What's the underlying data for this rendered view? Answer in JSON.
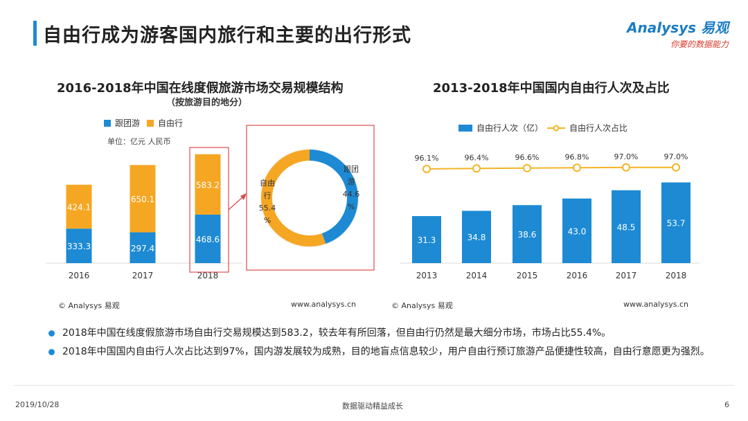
{
  "page": {
    "title": "自由行成为游客国内旅行和主要的出行形式",
    "brand": "Analysys 易观",
    "brand_slogan": "你要的数据能力",
    "accent": "#1d8ad3",
    "orange": "#f5a623"
  },
  "left_chart": {
    "title": "2016-2018年中国在线度假旅游市场交易规模结构",
    "subtitle": "（按旅游目的地分）",
    "unit": "单位：亿元 人民币",
    "source": "© Analysys 易观",
    "website": "www.analysys.cn"
  },
  "right_chart": {
    "title": "2013-2018年中国国内自由行人次及占比",
    "source": "© Analysys 易观",
    "website": "www.analysys.cn"
  },
  "chart_data": [
    {
      "type": "bar",
      "stacked": true,
      "title": "2016-2018年中国在线度假旅游市场交易规模结构",
      "categories": [
        "2016",
        "2017",
        "2018"
      ],
      "series": [
        {
          "name": "跟团游",
          "values": [
            333.3,
            297.4,
            468.6
          ],
          "labels": [
            "333.3",
            "297.4",
            "468.6"
          ],
          "color": "#1d8ad3"
        },
        {
          "name": "自由行",
          "values": [
            424.1,
            650.1,
            583.2
          ],
          "labels": [
            "424.1",
            "650.1",
            "583.2"
          ],
          "color": "#f5a623"
        }
      ],
      "ylabel": "单位：亿元 人民币",
      "ylim": [
        0,
        1100
      ]
    },
    {
      "type": "pie",
      "donut": true,
      "slices": [
        {
          "name": "跟团游",
          "value": 44.6,
          "label_lines": [
            "跟团",
            "游",
            "44.6",
            "%"
          ],
          "color": "#1d8ad3"
        },
        {
          "name": "自由行",
          "value": 55.4,
          "label_lines": [
            "自由",
            "行",
            "55.4",
            "%"
          ],
          "color": "#f5a623"
        }
      ]
    },
    {
      "type": "bar",
      "title": "2013-2018年中国国内自由行人次及占比",
      "categories": [
        "2013",
        "2014",
        "2015",
        "2016",
        "2017",
        "2018"
      ],
      "series": [
        {
          "name": "自由行人次（亿）",
          "values": [
            31.3,
            34.8,
            38.6,
            43.0,
            48.5,
            53.7
          ],
          "labels": [
            "31.3",
            "34.8",
            "38.6",
            "43.0",
            "48.5",
            "53.7"
          ],
          "color": "#1d8ad3"
        },
        {
          "name": "自由行人次占比",
          "type": "line",
          "values": [
            96.1,
            96.4,
            96.6,
            96.8,
            97.0,
            97.0
          ],
          "labels": [
            "96.1%",
            "96.4%",
            "96.6%",
            "96.8%",
            "97.0%",
            "97.0%"
          ],
          "color": "#f5b324"
        }
      ],
      "ylim": [
        0,
        60
      ]
    }
  ],
  "bullets": [
    "2018年中国在线度假旅游市场自由行交易规模达到583.2，较去年有所回落，但自由行仍然是最大细分市场，市场占比55.4%。",
    "2018年中国国内自由行人次占比达到97%，国内游发展较为成熟，目的地盲点信息较少，用户自由行预订旅游产品便捷性较高，自由行意愿更为强烈。"
  ],
  "footer": {
    "date": "2019/10/28",
    "center": "数据驱动精益成长",
    "page_number": "6"
  }
}
